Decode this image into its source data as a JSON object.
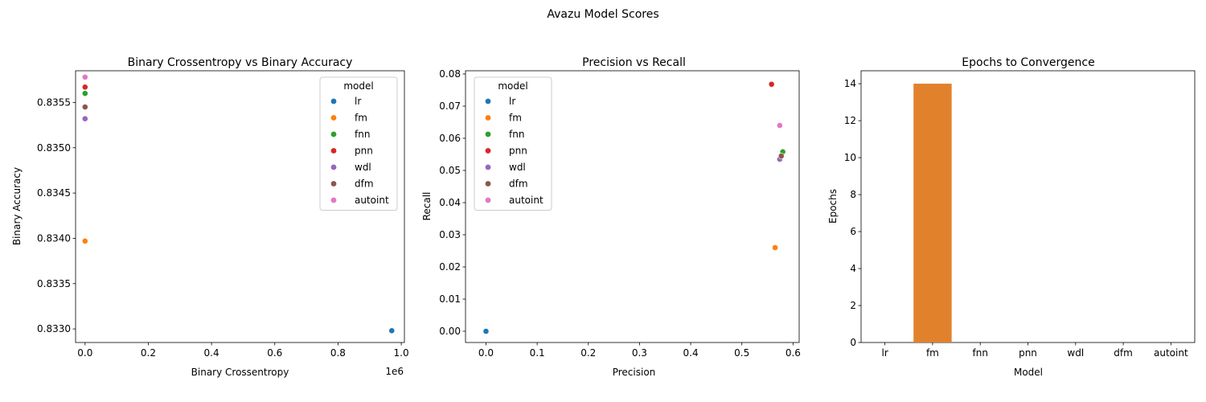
{
  "figure": {
    "title": "Avazu Model Scores"
  },
  "colors": {
    "lr": "#1f77b4",
    "fm": "#ff7f0e",
    "fnn": "#2ca02c",
    "pnn": "#d62728",
    "wdl": "#9467bd",
    "dfm": "#8c564b",
    "autoint": "#e377c2",
    "bar_fm": "#e1812c"
  },
  "chart_data": [
    {
      "type": "scatter",
      "title": "Binary Crossentropy vs Binary Accuracy",
      "xlabel": "Binary Crossentropy",
      "ylabel": "Binary Accuracy",
      "x_offset_label": "1e6",
      "x_scale_factor": 1000000,
      "xlim": [
        -30000,
        1010000
      ],
      "ylim": [
        0.83285,
        0.83585
      ],
      "x_ticks": [
        0,
        200000,
        400000,
        600000,
        800000,
        1000000
      ],
      "x_tick_labels": [
        "0.0",
        "0.2",
        "0.4",
        "0.6",
        "0.8",
        "1.0"
      ],
      "y_ticks": [
        0.833,
        0.8335,
        0.834,
        0.8345,
        0.835,
        0.8355
      ],
      "y_tick_labels": [
        "0.8330",
        "0.8335",
        "0.8340",
        "0.8345",
        "0.8350",
        "0.8355"
      ],
      "legend": {
        "title": "model",
        "placement": "upper right"
      },
      "points": [
        {
          "model": "lr",
          "x": 970000,
          "y": 0.83298
        },
        {
          "model": "fm",
          "x": 0,
          "y": 0.83397
        },
        {
          "model": "fnn",
          "x": 0,
          "y": 0.8356
        },
        {
          "model": "pnn",
          "x": 0,
          "y": 0.83567
        },
        {
          "model": "wdl",
          "x": 0,
          "y": 0.83532
        },
        {
          "model": "dfm",
          "x": 0,
          "y": 0.83545
        },
        {
          "model": "autoint",
          "x": 0,
          "y": 0.83578
        }
      ]
    },
    {
      "type": "scatter",
      "title": "Precision vs Recall",
      "xlabel": "Precision",
      "ylabel": "Recall",
      "xlim": [
        -0.04,
        0.612
      ],
      "ylim": [
        -0.0035,
        0.081
      ],
      "x_ticks": [
        0.0,
        0.1,
        0.2,
        0.3,
        0.4,
        0.5,
        0.6
      ],
      "x_tick_labels": [
        "0.0",
        "0.1",
        "0.2",
        "0.3",
        "0.4",
        "0.5",
        "0.6"
      ],
      "y_ticks": [
        0.0,
        0.01,
        0.02,
        0.03,
        0.04,
        0.05,
        0.06,
        0.07,
        0.08
      ],
      "y_tick_labels": [
        "0.00",
        "0.01",
        "0.02",
        "0.03",
        "0.04",
        "0.05",
        "0.06",
        "0.07",
        "0.08"
      ],
      "legend": {
        "title": "model",
        "placement": "upper left"
      },
      "points": [
        {
          "model": "lr",
          "x": 0.0,
          "y": 0.0
        },
        {
          "model": "fm",
          "x": 0.565,
          "y": 0.026
        },
        {
          "model": "fnn",
          "x": 0.58,
          "y": 0.0558
        },
        {
          "model": "pnn",
          "x": 0.558,
          "y": 0.0768
        },
        {
          "model": "wdl",
          "x": 0.574,
          "y": 0.0535
        },
        {
          "model": "dfm",
          "x": 0.577,
          "y": 0.0545
        },
        {
          "model": "autoint",
          "x": 0.574,
          "y": 0.064
        }
      ]
    },
    {
      "type": "bar",
      "title": "Epochs to Convergence",
      "xlabel": "Model",
      "ylabel": "Epochs",
      "categories": [
        "lr",
        "fm",
        "fnn",
        "pnn",
        "wdl",
        "dfm",
        "autoint"
      ],
      "values": [
        0,
        14,
        0,
        0,
        0,
        0,
        0
      ],
      "ylim": [
        0,
        14.7
      ],
      "y_ticks": [
        0,
        2,
        4,
        6,
        8,
        10,
        12,
        14
      ],
      "y_tick_labels": [
        "0",
        "2",
        "4",
        "6",
        "8",
        "10",
        "12",
        "14"
      ]
    }
  ],
  "legend_models": [
    "lr",
    "fm",
    "fnn",
    "pnn",
    "wdl",
    "dfm",
    "autoint"
  ]
}
